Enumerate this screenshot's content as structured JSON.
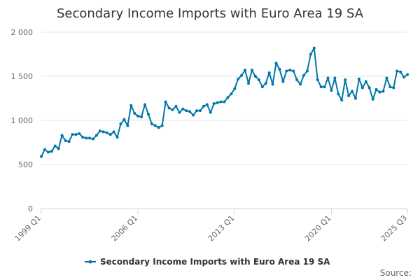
{
  "chart_data": {
    "type": "line",
    "title": "Secondary Income Imports with Euro Area 19 SA",
    "source_label": "Source:",
    "color": "#0077aa",
    "grid": true,
    "legend_position": "bottom",
    "ylim": [
      0,
      2000
    ],
    "y_ticks": [
      0,
      500,
      1000,
      1500,
      2000
    ],
    "y_tick_labels": [
      "0",
      "500",
      "1 000",
      "1 500",
      "2 000"
    ],
    "x_tick_labels": [
      {
        "label": "1999 Q1",
        "index": 0
      },
      {
        "label": "2006 Q1",
        "index": 28
      },
      {
        "label": "2013 Q1",
        "index": 56
      },
      {
        "label": "2020 Q1",
        "index": 84
      },
      {
        "label": "2025 Q3",
        "index": 106
      }
    ],
    "series": [
      {
        "name": "Secondary Income Imports with Euro Area 19 SA",
        "values": [
          590,
          670,
          640,
          650,
          710,
          680,
          830,
          770,
          760,
          840,
          840,
          850,
          810,
          800,
          800,
          790,
          830,
          880,
          870,
          860,
          840,
          870,
          810,
          960,
          1010,
          940,
          1170,
          1080,
          1050,
          1040,
          1180,
          1070,
          960,
          940,
          920,
          940,
          1210,
          1140,
          1120,
          1160,
          1090,
          1130,
          1110,
          1100,
          1060,
          1110,
          1110,
          1160,
          1180,
          1090,
          1190,
          1200,
          1210,
          1210,
          1260,
          1300,
          1360,
          1470,
          1510,
          1570,
          1420,
          1570,
          1500,
          1460,
          1380,
          1420,
          1540,
          1410,
          1650,
          1580,
          1440,
          1560,
          1570,
          1560,
          1460,
          1410,
          1510,
          1560,
          1750,
          1820,
          1460,
          1380,
          1380,
          1480,
          1340,
          1480,
          1300,
          1230,
          1460,
          1280,
          1330,
          1250,
          1470,
          1370,
          1440,
          1370,
          1240,
          1350,
          1320,
          1330,
          1480,
          1380,
          1370,
          1560,
          1550,
          1490,
          1520
        ]
      }
    ]
  }
}
